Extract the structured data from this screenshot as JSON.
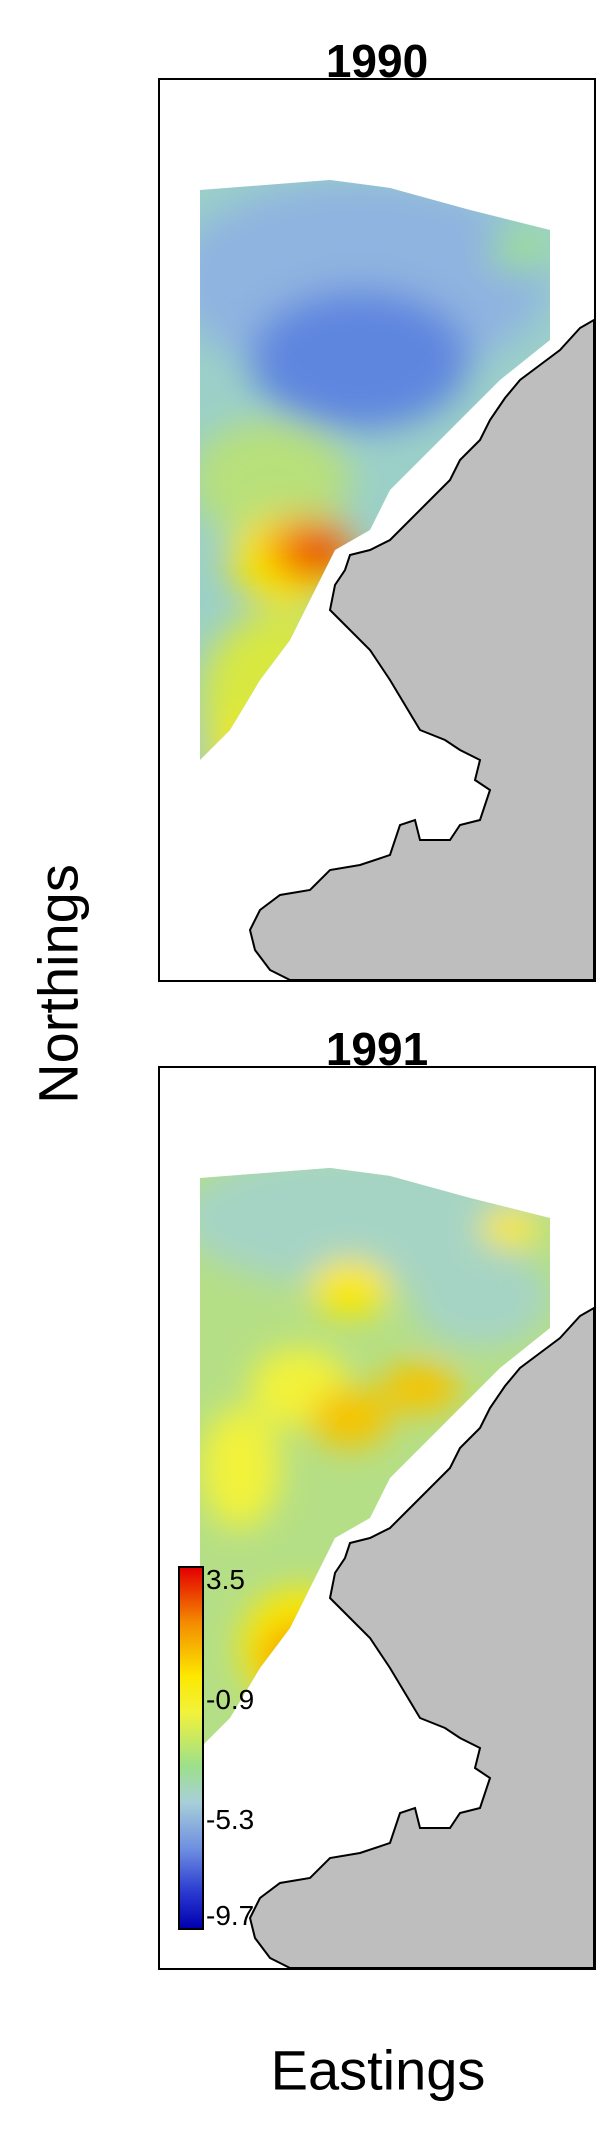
{
  "panels": [
    {
      "title": "1990"
    },
    {
      "title": "1991"
    }
  ],
  "axis": {
    "x_label": "Eastings",
    "y_label": "Northings"
  },
  "legend": {
    "ticks": [
      "3.5",
      "-0.9",
      "-5.3",
      "-9.7"
    ],
    "colors": {
      "high": "#e30000",
      "mid_high": "#fce800",
      "mid": "#9de08a",
      "mid_low": "#a8cfd8",
      "low": "#0000b0"
    }
  },
  "colors": {
    "land": "#bebebe",
    "coastline": "#000000"
  }
}
